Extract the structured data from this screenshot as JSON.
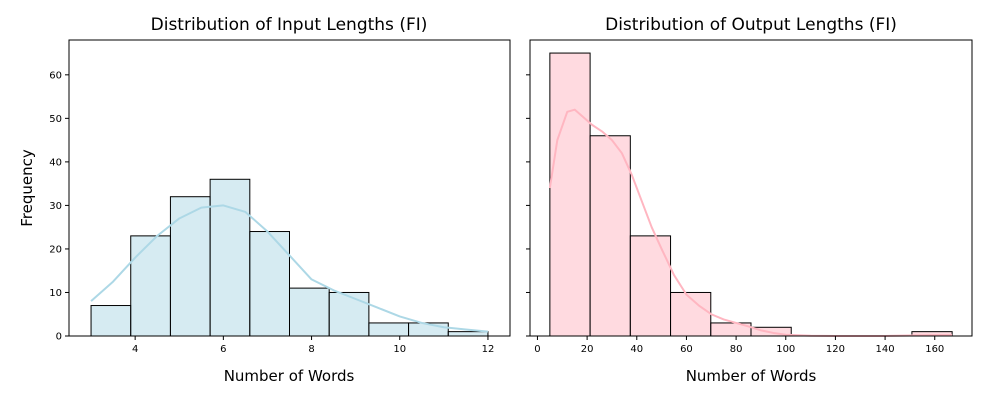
{
  "chart_data": [
    {
      "type": "histogram",
      "title": "Distribution of Input Lengths (FI)",
      "xlabel": "Number of Words",
      "ylabel": "Frequency",
      "xlim": [
        2.5,
        12.5
      ],
      "ylim": [
        0,
        68
      ],
      "xticks": [
        4,
        6,
        8,
        10,
        12
      ],
      "yticks": [
        0,
        10,
        20,
        30,
        40,
        50,
        60
      ],
      "bar_color": "#add8e6",
      "bins": [
        {
          "start": 3.0,
          "end": 3.9,
          "count": 7
        },
        {
          "start": 3.9,
          "end": 4.8,
          "count": 23
        },
        {
          "start": 4.8,
          "end": 5.7,
          "count": 32
        },
        {
          "start": 5.7,
          "end": 6.6,
          "count": 36
        },
        {
          "start": 6.6,
          "end": 7.5,
          "count": 24
        },
        {
          "start": 7.5,
          "end": 8.4,
          "count": 11
        },
        {
          "start": 8.4,
          "end": 9.3,
          "count": 10
        },
        {
          "start": 9.3,
          "end": 10.2,
          "count": 3
        },
        {
          "start": 10.2,
          "end": 11.1,
          "count": 3
        },
        {
          "start": 11.1,
          "end": 12.0,
          "count": 1
        }
      ],
      "kde": {
        "x": [
          3,
          3.5,
          4,
          4.5,
          5,
          5.5,
          6,
          6.5,
          7,
          7.5,
          8,
          8.5,
          9,
          9.5,
          10,
          10.5,
          11,
          11.5,
          12
        ],
        "y": [
          8,
          12.5,
          18,
          23,
          27,
          29.5,
          30,
          28.5,
          24,
          18.5,
          13,
          10.5,
          8.5,
          6.5,
          4.5,
          3,
          2,
          1.5,
          1
        ]
      }
    },
    {
      "type": "histogram",
      "title": "Distribution of Output Lengths (FI)",
      "xlabel": "Number of Words",
      "ylabel": "",
      "xlim": [
        -3,
        175
      ],
      "ylim": [
        0,
        68
      ],
      "xticks": [
        0,
        20,
        40,
        60,
        80,
        100,
        120,
        140,
        160
      ],
      "yticks": [
        0,
        10,
        20,
        30,
        40,
        50,
        60
      ],
      "bar_color": "#ffb6c1",
      "bins": [
        {
          "start": 5,
          "end": 21.2,
          "count": 65
        },
        {
          "start": 21.2,
          "end": 37.4,
          "count": 46
        },
        {
          "start": 37.4,
          "end": 53.6,
          "count": 23
        },
        {
          "start": 53.6,
          "end": 69.8,
          "count": 10
        },
        {
          "start": 69.8,
          "end": 86.0,
          "count": 3
        },
        {
          "start": 86.0,
          "end": 102.2,
          "count": 2
        },
        {
          "start": 102.2,
          "end": 118.4,
          "count": 0
        },
        {
          "start": 118.4,
          "end": 134.6,
          "count": 0
        },
        {
          "start": 134.6,
          "end": 150.8,
          "count": 0
        },
        {
          "start": 150.8,
          "end": 167.0,
          "count": 1
        }
      ],
      "kde": {
        "x": [
          5,
          8,
          12,
          15,
          18,
          22,
          26,
          30,
          34,
          38,
          42,
          46,
          50,
          55,
          60,
          65,
          70,
          75,
          80,
          85,
          90,
          95,
          100,
          110,
          120,
          130,
          140,
          150,
          160,
          167
        ],
        "y": [
          34,
          45,
          51.5,
          52,
          50.5,
          48.5,
          47,
          45,
          42,
          37,
          31,
          25,
          20,
          14,
          9.5,
          7,
          5,
          3.8,
          3,
          2.2,
          1.3,
          0.7,
          0.3,
          0.05,
          0,
          0,
          0,
          0.1,
          0.2,
          0.2
        ]
      }
    }
  ]
}
